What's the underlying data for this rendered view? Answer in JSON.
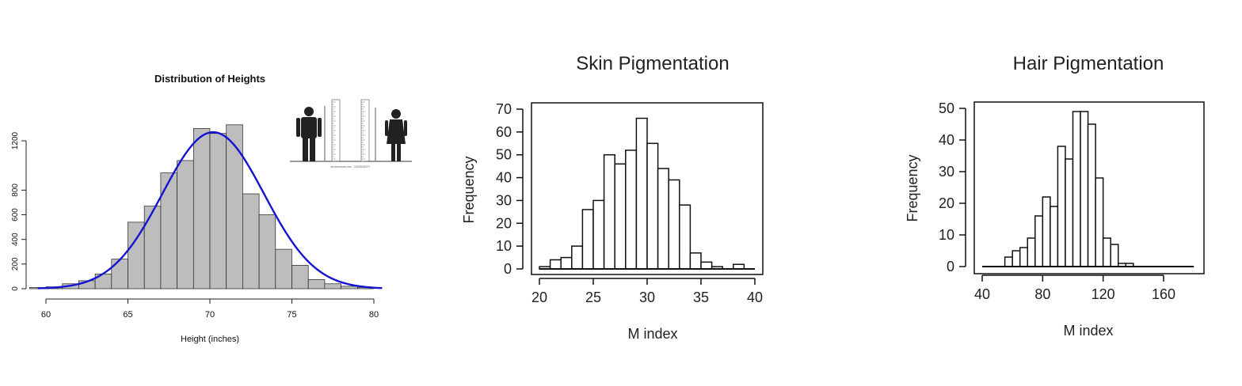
{
  "chart_data": [
    {
      "type": "bar",
      "title": "Distribution of Heights",
      "xlabel": "Height (inches)",
      "ylabel": "",
      "xlim": [
        59.5,
        80.5
      ],
      "ylim": [
        0,
        1300
      ],
      "xticks": [
        60,
        65,
        70,
        75,
        80
      ],
      "yticks": [
        0,
        200,
        400,
        600,
        800,
        1200
      ],
      "bin_width": 1,
      "bin_starts": [
        59,
        60,
        61,
        62,
        63,
        64,
        65,
        66,
        67,
        68,
        69,
        70,
        71,
        72,
        73,
        74,
        75,
        76,
        77,
        78,
        79
      ],
      "values": [
        10,
        15,
        40,
        65,
        120,
        240,
        540,
        670,
        940,
        1040,
        1300,
        1260,
        1330,
        770,
        600,
        320,
        190,
        75,
        40,
        20,
        10
      ],
      "curve": {
        "type": "normal-density",
        "mean": 70.2,
        "sd": 3.1,
        "peak": 1270,
        "color": "#1414d2"
      },
      "bar_color": "#bdbdbd",
      "inset": {
        "icons": [
          "male-figure-icon",
          "female-figure-icon",
          "measuring-scale-icon"
        ],
        "caption": "shutterstock.com · 2402848379"
      }
    },
    {
      "type": "bar",
      "title": "Skin Pigmentation",
      "xlabel": "M index",
      "ylabel": "Frequency",
      "xlim": [
        20,
        40
      ],
      "ylim": [
        0,
        70
      ],
      "xticks": [
        20,
        25,
        30,
        35,
        40
      ],
      "yticks": [
        0,
        10,
        20,
        30,
        40,
        50,
        60,
        70
      ],
      "bin_width": 1,
      "bin_starts": [
        20,
        21,
        22,
        23,
        24,
        25,
        26,
        27,
        28,
        29,
        30,
        31,
        32,
        33,
        34,
        35,
        36,
        37,
        38,
        39
      ],
      "values": [
        1,
        4,
        5,
        10,
        26,
        30,
        50,
        46,
        52,
        66,
        55,
        44,
        39,
        28,
        7,
        3,
        1,
        0,
        2,
        0
      ],
      "bar_color": "#ffffff"
    },
    {
      "type": "bar",
      "title": "Hair Pigmentation",
      "xlabel": "M index",
      "ylabel": "Frequency",
      "xlim": [
        40,
        180
      ],
      "ylim": [
        0,
        50
      ],
      "xticks": [
        40,
        80,
        120,
        160
      ],
      "yticks": [
        0,
        10,
        20,
        30,
        40,
        50
      ],
      "bin_width": 5,
      "bin_starts": [
        40,
        45,
        50,
        55,
        60,
        65,
        70,
        75,
        80,
        85,
        90,
        95,
        100,
        105,
        110,
        115,
        120,
        125,
        130,
        135,
        140,
        145,
        150,
        155,
        160,
        165,
        170,
        175
      ],
      "values": [
        0,
        0,
        0,
        3,
        5,
        6,
        9,
        16,
        22,
        19,
        38,
        34,
        49,
        49,
        45,
        28,
        9,
        7,
        1,
        1,
        0,
        0,
        0,
        0,
        0,
        0,
        0,
        0
      ],
      "bar_color": "#ffffff"
    }
  ]
}
